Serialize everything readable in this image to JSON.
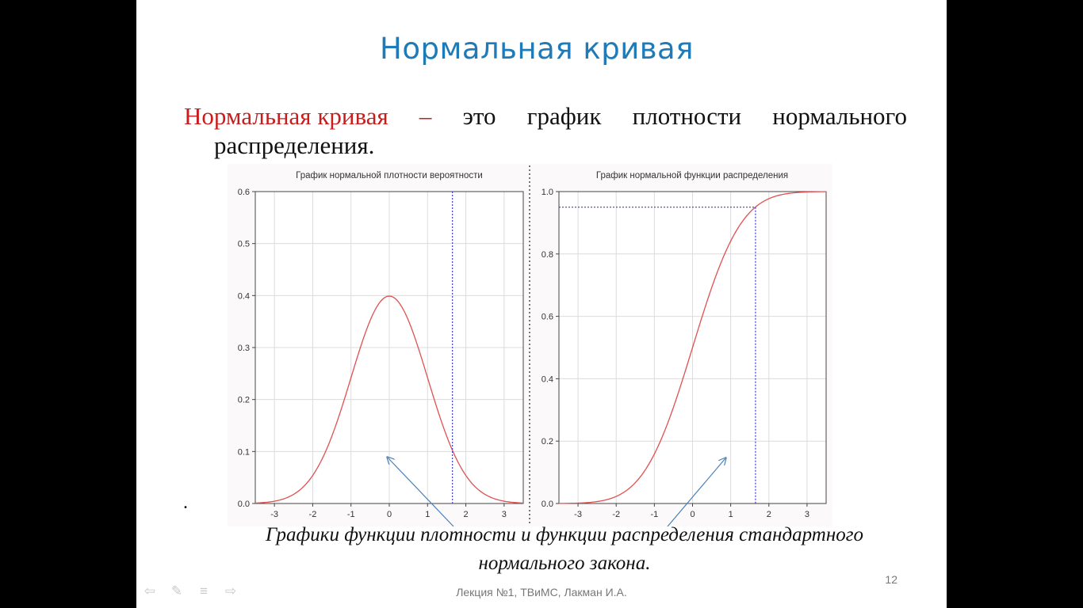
{
  "slide": {
    "title": "Нормальная кривая",
    "definition": {
      "term": "Нормальная кривая",
      "dash": "–",
      "line1_words": [
        "это",
        "график",
        "плотности",
        "нормального"
      ],
      "line2": "распределения."
    },
    "bullet": ".",
    "caption_line1": "Графики функции плотности и функции распределения стандартного",
    "caption_line2": "нормального закона.",
    "slide_number": "12",
    "footer": "Лекция №1, ТВиМС, Лакман И.А."
  },
  "nav_icons": [
    "arrow-left-icon",
    "pen-icon",
    "menu-icon",
    "arrow-right-icon"
  ],
  "colors": {
    "title": "#1f7ab8",
    "term": "#c91d1d",
    "curve": "#e05050",
    "marker": "#3a3ad0",
    "arrow": "#4a80b8",
    "grid": "#dcdcdc"
  },
  "chart_data": [
    {
      "type": "line",
      "title": "График нормальной плотности вероятности",
      "xlim": [
        -3.5,
        3.5
      ],
      "ylim": [
        0,
        0.6
      ],
      "x_ticks": [
        -3,
        -2,
        -1,
        0,
        1,
        2,
        3
      ],
      "y_ticks": [
        "0.0",
        "0.1",
        "0.2",
        "0.3",
        "0.4",
        "0.5",
        "0.6"
      ],
      "function": "normal_pdf",
      "mu": 0,
      "sigma": 1,
      "marker_x": 1.65,
      "grid": true
    },
    {
      "type": "line",
      "title": "График нормальной функции распределения",
      "xlim": [
        -3.5,
        3.5
      ],
      "ylim": [
        0,
        1
      ],
      "x_ticks": [
        -3,
        -2,
        -1,
        0,
        1,
        2,
        3
      ],
      "y_ticks": [
        "0.0",
        "0.2",
        "0.4",
        "0.6",
        "0.8",
        "1.0"
      ],
      "function": "normal_cdf",
      "mu": 0,
      "sigma": 1,
      "marker_x": 1.65,
      "marker_y": 0.95,
      "grid": true
    }
  ]
}
